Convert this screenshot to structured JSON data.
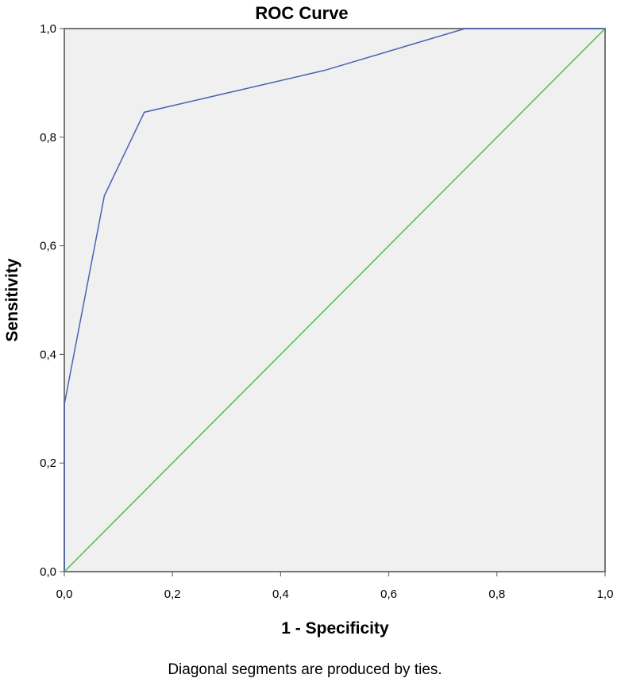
{
  "chart_data": {
    "type": "line",
    "title": "ROC Curve",
    "xlabel": "1 - Specificity",
    "ylabel": "Sensitivity",
    "footnote": "Diagonal segments are produced by ties.",
    "xlim": [
      0,
      1
    ],
    "ylim": [
      0,
      1
    ],
    "x_ticks": [
      "0,0",
      "0,2",
      "0,4",
      "0,6",
      "0,8",
      "1,0"
    ],
    "y_ticks": [
      "0,0",
      "0,2",
      "0,4",
      "0,6",
      "0,8",
      "1,0"
    ],
    "grid": false,
    "legend": "none",
    "series": [
      {
        "color": "#4a63b5",
        "x": [
          0.0,
          0.0,
          0.074,
          0.148,
          0.481,
          0.741,
          1.0
        ],
        "y": [
          0.0,
          0.308,
          0.692,
          0.846,
          0.923,
          1.0,
          1.0
        ]
      },
      {
        "color": "#4cbf4c",
        "x": [
          0.0,
          1.0
        ],
        "y": [
          0.0,
          1.0
        ]
      }
    ],
    "plot_background": "#f0f0f0",
    "frame_color": "#777777"
  }
}
